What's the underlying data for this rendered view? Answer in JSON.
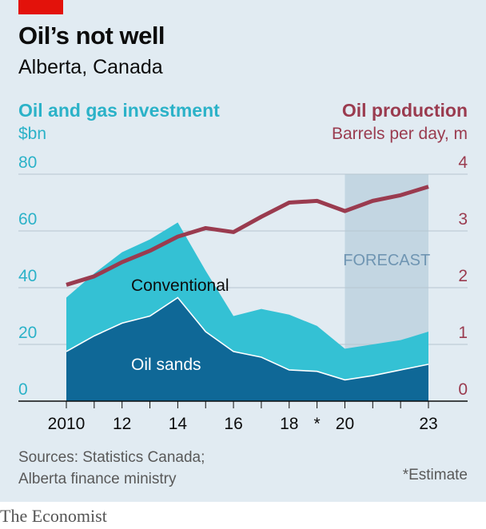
{
  "header": {
    "title": "Oil’s not well",
    "subtitle": "Alberta, Canada"
  },
  "left_axis_header": {
    "title": "Oil and gas investment",
    "unit": "$bn"
  },
  "right_axis_header": {
    "title": "Oil production",
    "unit": "Barrels per day, m"
  },
  "chart_data": {
    "type": "area",
    "x": [
      2010,
      2011,
      2012,
      2013,
      2014,
      2015,
      2016,
      2017,
      2018,
      2019,
      2020,
      2021,
      2022,
      2023
    ],
    "xticks": [
      2010,
      2012,
      2014,
      2016,
      2018,
      2019,
      2020,
      2023
    ],
    "xtick_labels": [
      "2010",
      "12",
      "14",
      "16",
      "18",
      "*",
      "20",
      "23"
    ],
    "ylim_left": [
      0,
      80
    ],
    "yticks_left": [
      0,
      20,
      40,
      60,
      80
    ],
    "ylim_right": [
      0,
      4
    ],
    "yticks_right": [
      0,
      1,
      2,
      3,
      4
    ],
    "grid": true,
    "series": [
      {
        "name": "Oil sands",
        "kind": "stacked-area",
        "axis": "left",
        "values": [
          17.5,
          23,
          27.5,
          30,
          36.5,
          24.5,
          17.5,
          15.5,
          11,
          10.5,
          7.5,
          9,
          11,
          13
        ],
        "color": "#0f6897"
      },
      {
        "name": "Conventional",
        "kind": "stacked-area",
        "axis": "left",
        "values": [
          19,
          22,
          25,
          27,
          26.5,
          21.5,
          12.5,
          17,
          19.5,
          16,
          11,
          11,
          10.5,
          11.5
        ],
        "color": "#34c1d4"
      },
      {
        "name": "Oil production",
        "kind": "line",
        "axis": "right",
        "values": [
          2.05,
          2.2,
          2.45,
          2.65,
          2.9,
          3.05,
          2.98,
          3.25,
          3.5,
          3.53,
          3.35,
          3.53,
          3.63,
          3.78
        ],
        "color": "#9a3b4f"
      }
    ],
    "forecast": {
      "label": "FORECAST",
      "from": 2020,
      "to": 2023
    },
    "annotations": {
      "estimate_marker": "*"
    }
  },
  "footer": {
    "source_line1": "Sources: Statistics Canada;",
    "source_line2": "Alberta finance ministry",
    "note": "*Estimate",
    "brand": "The Economist"
  }
}
